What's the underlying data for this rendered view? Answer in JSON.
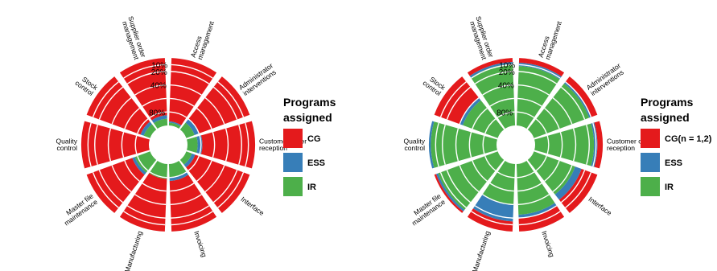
{
  "chart_data": [
    {
      "type": "polar-stacked-bar",
      "categories": [
        "Access management",
        "Administrator interventions",
        "Customer order reception",
        "Interface",
        "Invoicing",
        "Manufacturing",
        "Master file maintenance",
        "Quality control",
        "Stock control",
        "Supplier order management"
      ],
      "radial_ticks": [
        "10%",
        "20%",
        "40%",
        "80%"
      ],
      "series": [
        {
          "name": "CG",
          "color": "#e41a1c",
          "values": [
            0.94,
            0.8,
            0.78,
            0.86,
            0.75,
            0.78,
            0.72,
            1.0,
            0.85,
            0.85
          ]
        },
        {
          "name": "ESS",
          "color": "#377eb8",
          "values": [
            0.02,
            0.07,
            0.07,
            0.05,
            0.05,
            0.0,
            0.04,
            0.0,
            0.05,
            0.05
          ]
        },
        {
          "name": "IR",
          "color": "#4daf4a",
          "values": [
            0.04,
            0.13,
            0.15,
            0.09,
            0.2,
            0.22,
            0.24,
            0.0,
            0.1,
            0.1
          ]
        }
      ],
      "legend": {
        "title_line1": "Programs",
        "title_line2": "assigned",
        "placement": "right"
      }
    },
    {
      "type": "polar-stacked-bar",
      "categories": [
        "Access management",
        "Administrator interventions",
        "Customer order reception",
        "Interface",
        "Invoicing",
        "Manufacturing",
        "Master file maintenance",
        "Quality control",
        "Stock control",
        "Supplier order management"
      ],
      "radial_ticks": [
        "10%",
        "20%",
        "40%",
        "80%"
      ],
      "series": [
        {
          "name": "CG(n = 1,2)",
          "color": "#e41a1c",
          "values": [
            0.07,
            0.1,
            0.08,
            0.25,
            0.2,
            0.15,
            0.03,
            0.0,
            0.4,
            0.06
          ]
        },
        {
          "name": "ESS",
          "color": "#377eb8",
          "values": [
            0.05,
            0.03,
            0.05,
            0.1,
            0.05,
            0.25,
            0.03,
            0.03,
            0.05,
            0.03
          ]
        },
        {
          "name": "IR",
          "color": "#4daf4a",
          "values": [
            0.88,
            0.87,
            0.87,
            0.65,
            0.75,
            0.6,
            0.94,
            0.97,
            0.55,
            0.91
          ]
        }
      ],
      "legend": {
        "title_line1": "Programs",
        "title_line2": "assigned",
        "placement": "right"
      }
    }
  ]
}
